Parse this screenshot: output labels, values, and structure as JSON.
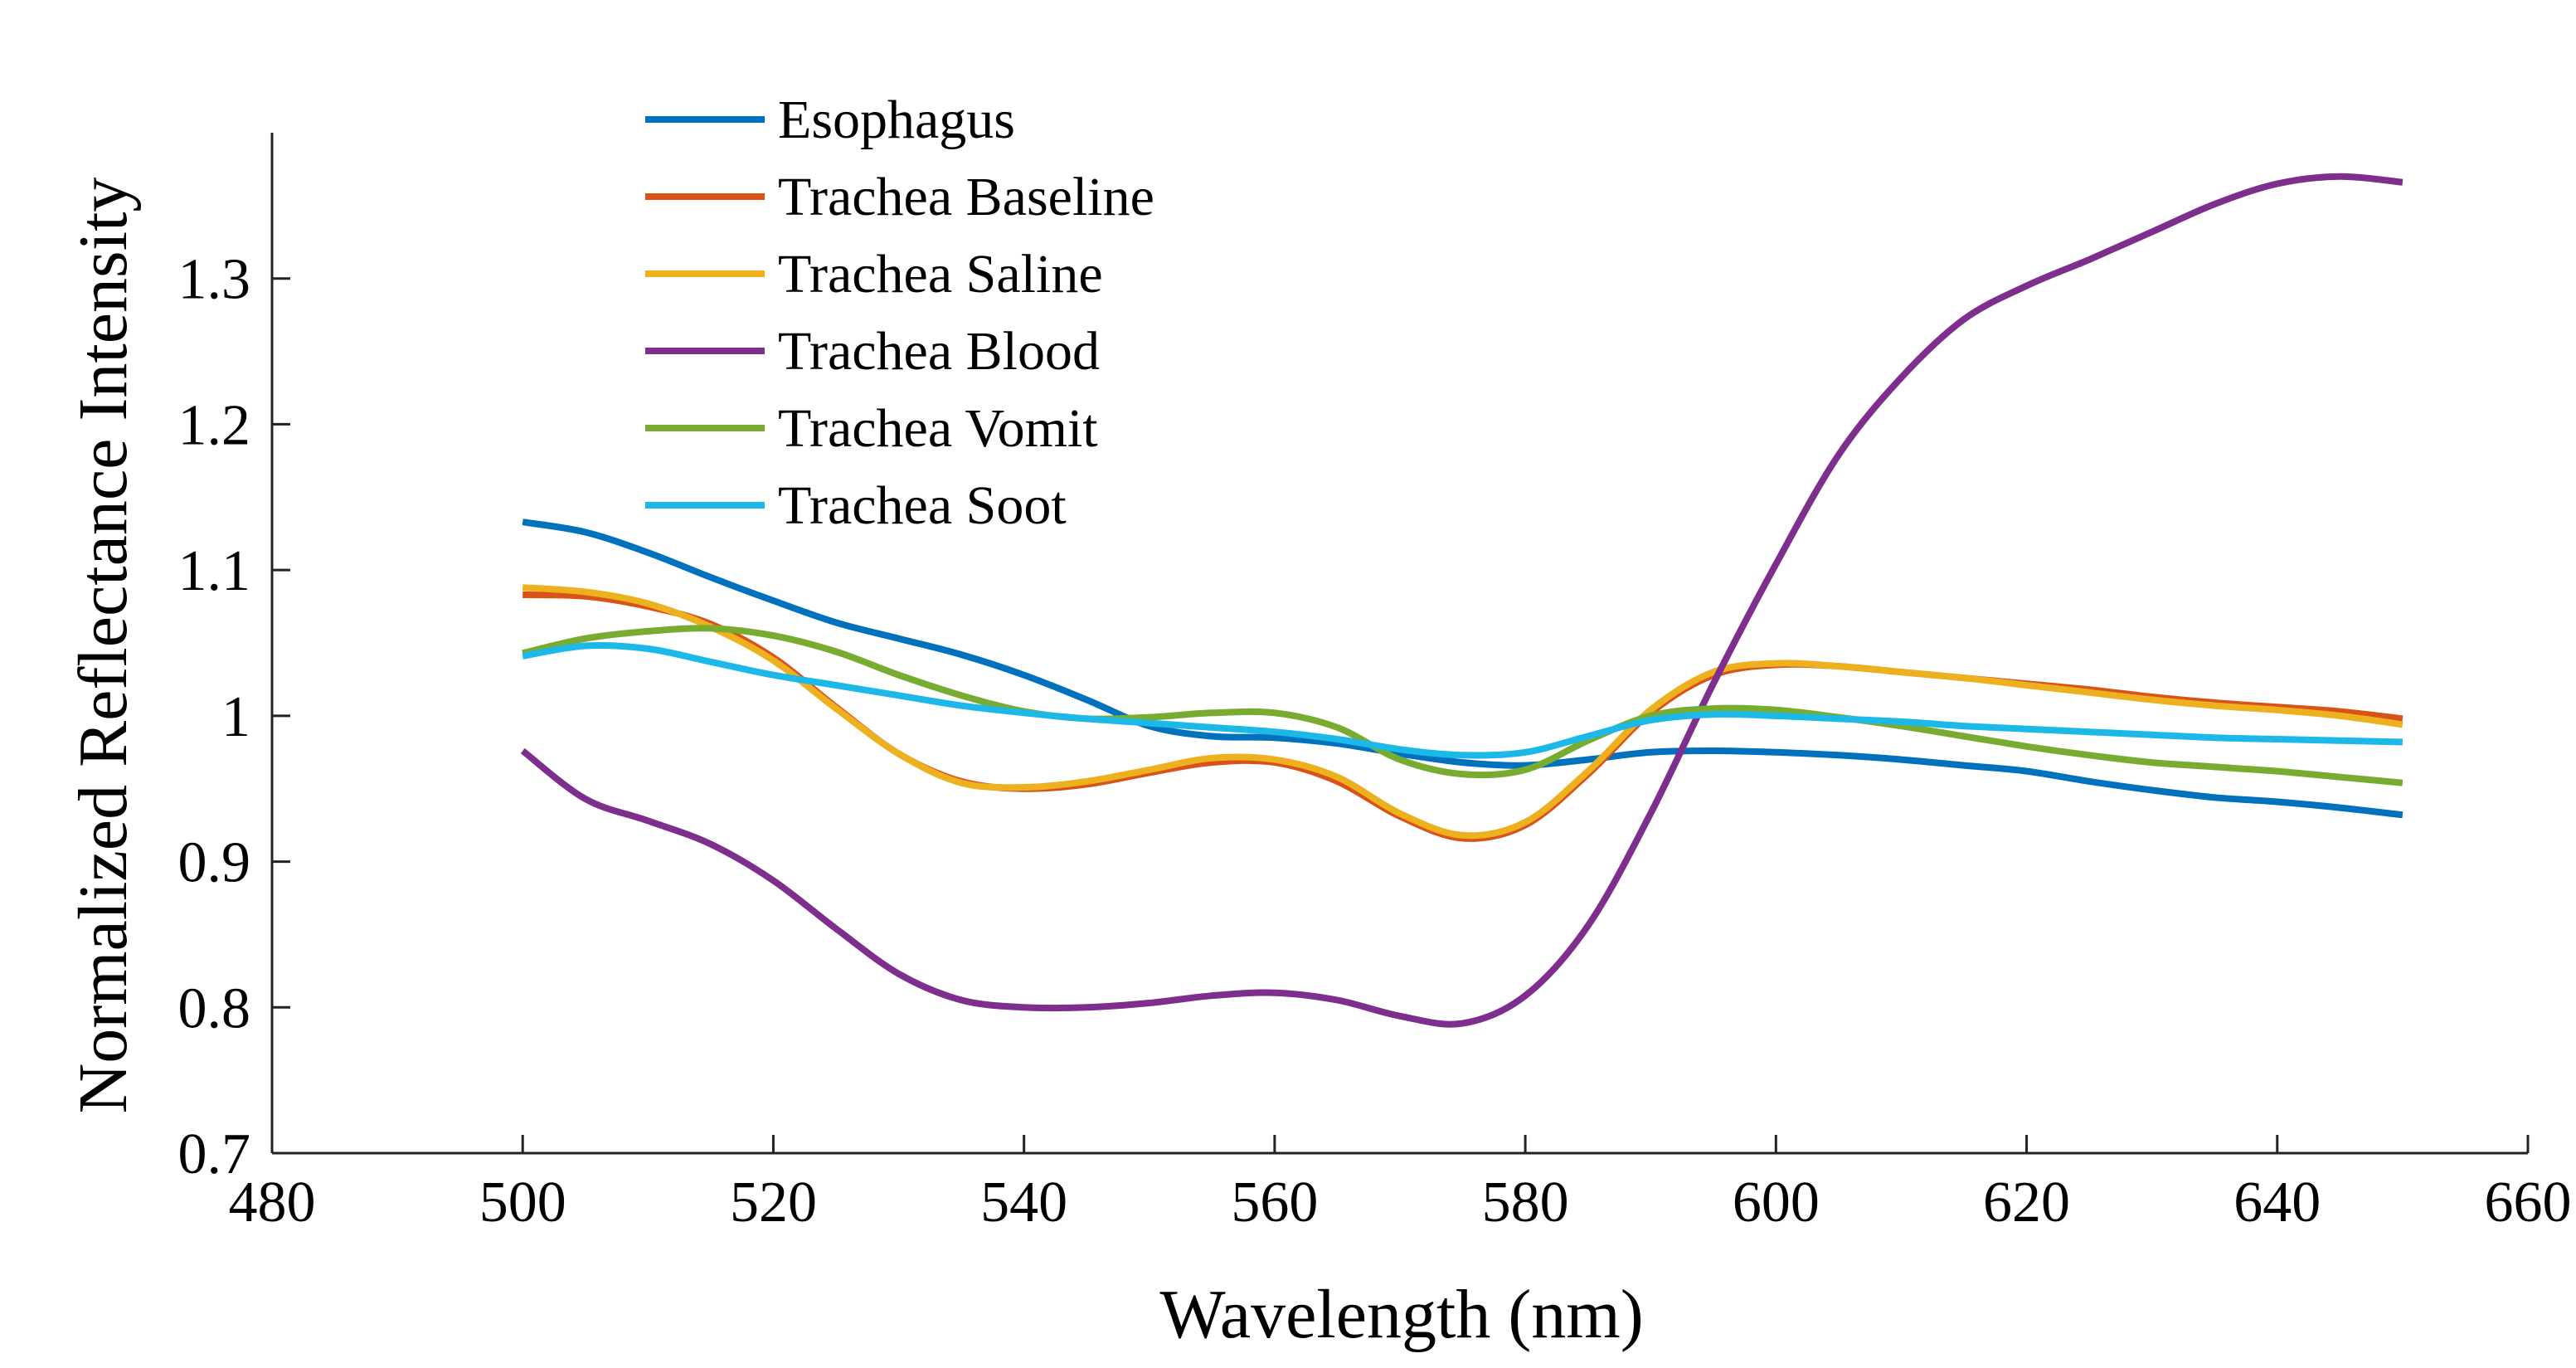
{
  "chart_data": {
    "type": "line",
    "title": "",
    "xlabel": "Wavelength (nm)",
    "ylabel": "Normalized Reflectance Intensity",
    "xlim": [
      480,
      660
    ],
    "ylim": [
      0.7,
      1.4
    ],
    "xticks": [
      480,
      500,
      520,
      540,
      560,
      580,
      600,
      620,
      640,
      660
    ],
    "xtick_labels": [
      "480",
      "500",
      "520",
      "540",
      "560",
      "580",
      "600",
      "620",
      "640",
      "660"
    ],
    "yticks": [
      0.7,
      0.8,
      0.9,
      1.0,
      1.1,
      1.2,
      1.3
    ],
    "ytick_labels": [
      "0.7",
      "0.8",
      "0.9",
      "1",
      "1.1",
      "1.2",
      "1.3"
    ],
    "legend_position": "top-left",
    "x": [
      500,
      505,
      510,
      515,
      520,
      525,
      530,
      535,
      540,
      545,
      550,
      555,
      560,
      565,
      570,
      575,
      580,
      585,
      590,
      595,
      600,
      605,
      610,
      615,
      620,
      625,
      630,
      635,
      640,
      645,
      650
    ],
    "series": [
      {
        "name": "Esophagus",
        "color": "#0072BD",
        "values": [
          1.133,
          1.126,
          1.112,
          1.095,
          1.079,
          1.064,
          1.053,
          1.042,
          1.028,
          1.011,
          0.993,
          0.986,
          0.985,
          0.981,
          0.974,
          0.968,
          0.966,
          0.97,
          0.975,
          0.976,
          0.975,
          0.973,
          0.97,
          0.966,
          0.962,
          0.955,
          0.949,
          0.944,
          0.941,
          0.937,
          0.932
        ]
      },
      {
        "name": "Trachea Baseline",
        "color": "#D95319",
        "values": [
          1.083,
          1.082,
          1.075,
          1.063,
          1.04,
          1.006,
          0.974,
          0.955,
          0.95,
          0.953,
          0.961,
          0.968,
          0.968,
          0.955,
          0.931,
          0.916,
          0.925,
          0.96,
          1.002,
          1.028,
          1.035,
          1.034,
          1.03,
          1.026,
          1.022,
          1.018,
          1.013,
          1.009,
          1.006,
          1.003,
          0.998
        ]
      },
      {
        "name": "Trachea Saline",
        "color": "#EDB120",
        "values": [
          1.088,
          1.085,
          1.077,
          1.061,
          1.038,
          1.005,
          0.974,
          0.954,
          0.951,
          0.955,
          0.963,
          0.971,
          0.97,
          0.958,
          0.933,
          0.918,
          0.927,
          0.962,
          1.004,
          1.03,
          1.036,
          1.034,
          1.03,
          1.026,
          1.021,
          1.016,
          1.011,
          1.007,
          1.004,
          1.0,
          0.994
        ]
      },
      {
        "name": "Trachea Blood",
        "color": "#7E2F8E",
        "values": [
          0.976,
          0.943,
          0.928,
          0.912,
          0.887,
          0.854,
          0.823,
          0.805,
          0.8,
          0.8,
          0.803,
          0.808,
          0.81,
          0.805,
          0.794,
          0.789,
          0.808,
          0.856,
          0.933,
          1.022,
          1.104,
          1.179,
          1.232,
          1.272,
          1.295,
          1.313,
          1.332,
          1.351,
          1.365,
          1.37,
          1.366
        ]
      },
      {
        "name": "Trachea Vomit",
        "color": "#77AC30",
        "values": [
          1.043,
          1.053,
          1.058,
          1.06,
          1.055,
          1.044,
          1.028,
          1.014,
          1.003,
          0.998,
          0.999,
          1.002,
          1.002,
          0.992,
          0.97,
          0.96,
          0.963,
          0.983,
          1.0,
          1.005,
          1.004,
          0.999,
          0.993,
          0.986,
          0.979,
          0.973,
          0.968,
          0.965,
          0.962,
          0.958,
          0.954
        ]
      },
      {
        "name": "Trachea Soot",
        "color": "#1BB8E8",
        "values": [
          1.041,
          1.048,
          1.046,
          1.037,
          1.028,
          1.021,
          1.014,
          1.007,
          1.002,
          0.998,
          0.995,
          0.992,
          0.989,
          0.984,
          0.977,
          0.973,
          0.975,
          0.986,
          0.997,
          1.001,
          1.0,
          0.998,
          0.996,
          0.993,
          0.991,
          0.989,
          0.987,
          0.985,
          0.984,
          0.983,
          0.982
        ]
      }
    ]
  }
}
